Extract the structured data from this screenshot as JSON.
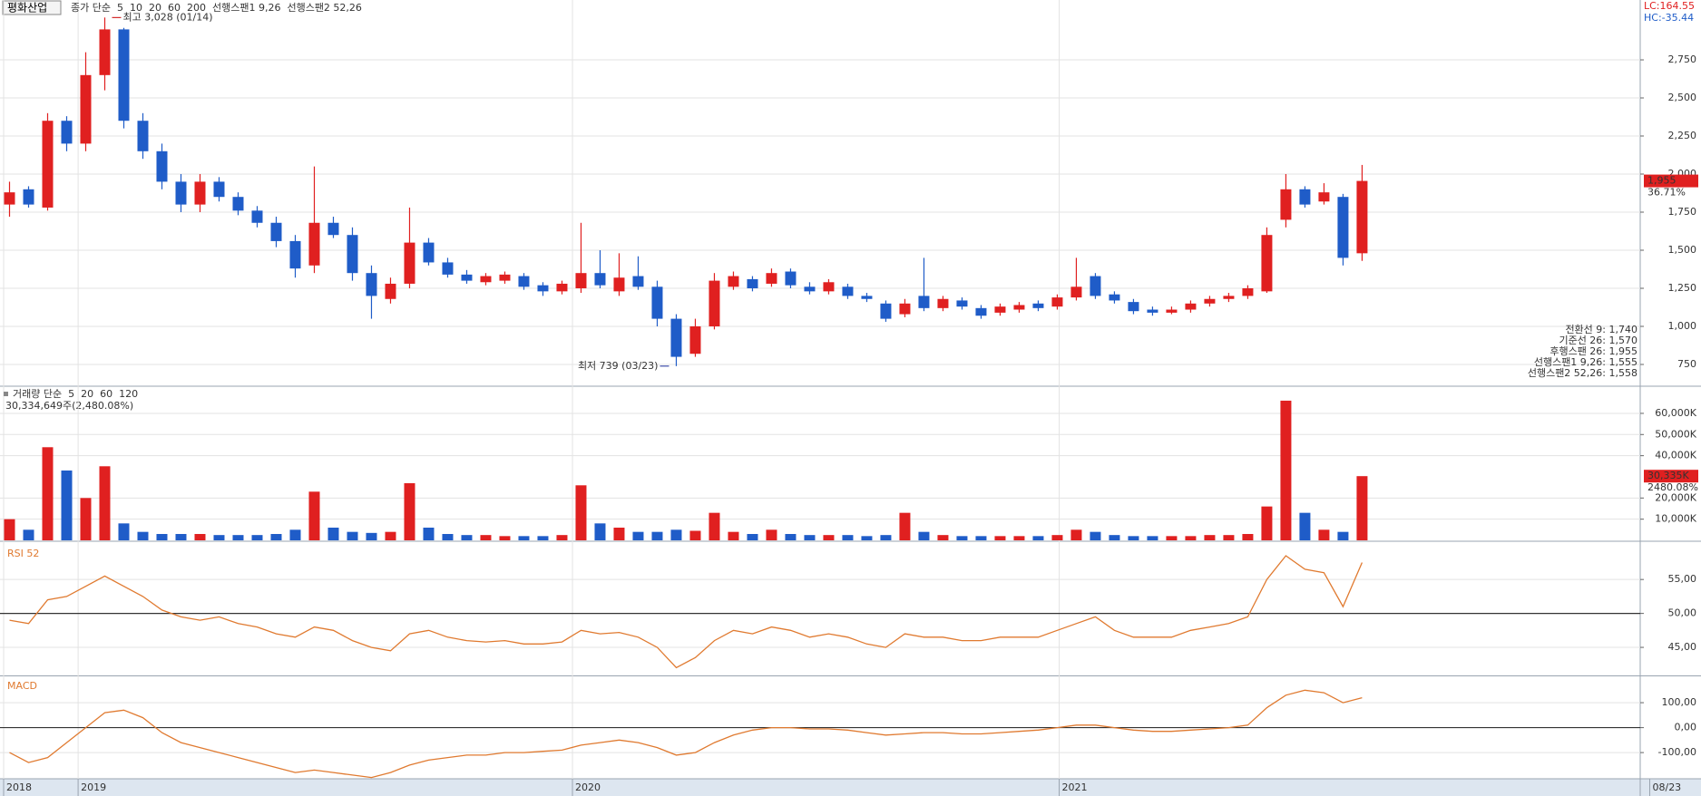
{
  "header": {
    "stock": "평화산업",
    "legend": [
      {
        "text": "종가 단순",
        "color": "#9933cc"
      },
      {
        "text": "5",
        "color": "#9933cc"
      },
      {
        "text": "10",
        "color": "#1a2a80"
      },
      {
        "text": "20",
        "color": "#e0a000"
      },
      {
        "text": "60",
        "color": "#339966"
      },
      {
        "text": "200",
        "color": "#555555"
      },
      {
        "text": "선행스팬1 9,26",
        "color": "#f08040"
      },
      {
        "text": "선행스팬2 52,26",
        "color": "#4a70d0"
      }
    ],
    "lc": "LC:164.55",
    "hc": "HC:-35.44",
    "info": [
      {
        "text": "전환선 9: 1,740",
        "color": "#2e8b57"
      },
      {
        "text": "기준선 26: 1,570",
        "color": "#666666"
      },
      {
        "text": "후행스팬 26: 1,955",
        "color": "#9933cc"
      },
      {
        "text": "선행스팬1 9,26: 1,555",
        "color": "#f08040"
      },
      {
        "text": "선행스팬2 52,26: 1,558",
        "color": "#4a70d0"
      }
    ]
  },
  "chart_data": [
    {
      "type": "candlestick",
      "up_color": "#e02020",
      "down_color": "#1f5cc8",
      "xlim": [
        -0.5,
        85.6
      ],
      "xticks": [
        {
          "value": -0.31,
          "label": "2018"
        },
        {
          "value": 3.6,
          "label": "2019"
        },
        {
          "value": 29.55,
          "label": "2020"
        },
        {
          "value": 55.1,
          "label": "2021"
        },
        {
          "value": 86.1,
          "label": "08/23"
        }
      ],
      "ylim": [
        613,
        3143
      ],
      "yticks": [
        {
          "value": 750,
          "label": "750"
        },
        {
          "value": 1000,
          "label": "1,000"
        },
        {
          "value": 1250,
          "label": "1,250"
        },
        {
          "value": 1500,
          "label": "1,500"
        },
        {
          "value": 1750,
          "label": "1,750"
        },
        {
          "value": 2000,
          "label": "2,000"
        },
        {
          "value": 2250,
          "label": "2,250"
        },
        {
          "value": 2500,
          "label": "2,500"
        },
        {
          "value": 2750,
          "label": "2,750"
        }
      ],
      "open": [
        1800,
        1900,
        1780,
        2350,
        2200,
        2650,
        2950,
        2350,
        2150,
        1950,
        1800,
        1950,
        1850,
        1760,
        1680,
        1560,
        1400,
        1680,
        1600,
        1350,
        1180,
        1280,
        1550,
        1420,
        1340,
        1290,
        1300,
        1330,
        1270,
        1230,
        1250,
        1350,
        1230,
        1330,
        1260,
        1050,
        820,
        1000,
        1260,
        1310,
        1280,
        1360,
        1260,
        1230,
        1260,
        1200,
        1150,
        1080,
        1200,
        1120,
        1170,
        1120,
        1090,
        1110,
        1150,
        1130,
        1190,
        1330,
        1210,
        1160,
        1110,
        1090,
        1110,
        1150,
        1180,
        1200,
        1230,
        1700,
        1900,
        1820,
        1850,
        1480
      ],
      "close": [
        1880,
        1800,
        2350,
        2200,
        2650,
        2950,
        2350,
        2150,
        1950,
        1800,
        1950,
        1850,
        1760,
        1680,
        1560,
        1380,
        1680,
        1600,
        1350,
        1200,
        1280,
        1550,
        1420,
        1340,
        1300,
        1330,
        1340,
        1260,
        1230,
        1280,
        1350,
        1270,
        1320,
        1260,
        1050,
        800,
        1000,
        1300,
        1330,
        1250,
        1350,
        1270,
        1230,
        1290,
        1200,
        1180,
        1050,
        1150,
        1120,
        1180,
        1130,
        1070,
        1130,
        1140,
        1120,
        1190,
        1260,
        1200,
        1170,
        1100,
        1090,
        1110,
        1150,
        1180,
        1200,
        1250,
        1600,
        1900,
        1800,
        1880,
        1450,
        1955
      ],
      "high": [
        1950,
        1920,
        2400,
        2380,
        2800,
        3028,
        2960,
        2400,
        2200,
        2000,
        2000,
        1980,
        1880,
        1790,
        1720,
        1600,
        2050,
        1720,
        1650,
        1400,
        1320,
        1780,
        1580,
        1450,
        1370,
        1350,
        1360,
        1350,
        1290,
        1300,
        1680,
        1500,
        1480,
        1460,
        1300,
        1080,
        1050,
        1350,
        1360,
        1330,
        1380,
        1380,
        1290,
        1310,
        1280,
        1220,
        1170,
        1180,
        1450,
        1200,
        1190,
        1140,
        1150,
        1160,
        1170,
        1210,
        1450,
        1350,
        1230,
        1180,
        1130,
        1130,
        1170,
        1200,
        1220,
        1270,
        1650,
        2000,
        1920,
        1940,
        1870,
        2060
      ],
      "low": [
        1720,
        1780,
        1760,
        2150,
        2150,
        2550,
        2300,
        2100,
        1900,
        1750,
        1750,
        1820,
        1730,
        1650,
        1520,
        1320,
        1350,
        1580,
        1300,
        1050,
        1150,
        1250,
        1400,
        1320,
        1280,
        1270,
        1280,
        1240,
        1200,
        1210,
        1220,
        1250,
        1200,
        1240,
        1000,
        739,
        800,
        980,
        1240,
        1230,
        1260,
        1250,
        1210,
        1210,
        1180,
        1160,
        1030,
        1060,
        1100,
        1100,
        1110,
        1050,
        1070,
        1090,
        1100,
        1110,
        1170,
        1180,
        1150,
        1080,
        1070,
        1080,
        1090,
        1130,
        1160,
        1180,
        1220,
        1650,
        1780,
        1800,
        1400,
        1430
      ],
      "annotations": [
        "최고 3,028 (01/14)",
        "최저 739 (03/23)"
      ],
      "last_label": "1,955",
      "change_label": "36.71%"
    },
    {
      "type": "volume",
      "legend": [
        {
          "text": "거래량 단순",
          "color": "#9933cc"
        },
        {
          "text": "5",
          "color": "#9933cc"
        },
        {
          "text": "20",
          "color": "#e0a000"
        },
        {
          "text": "60",
          "color": "#339966"
        },
        {
          "text": "120",
          "color": "#555555"
        }
      ],
      "subtitle": "30,334,649주(2,480.08%)",
      "ylim": [
        0,
        72400
      ],
      "yticks": [
        {
          "value": 10000,
          "label": "10,000K"
        },
        {
          "value": 20000,
          "label": "20,000K"
        },
        {
          "value": 40000,
          "label": "40,000K"
        },
        {
          "value": 50000,
          "label": "50,000K"
        },
        {
          "value": 60000,
          "label": "60,000K"
        }
      ],
      "values": [
        10000,
        5000,
        44000,
        33000,
        20000,
        35000,
        8000,
        4000,
        3000,
        3000,
        3000,
        2500,
        2500,
        2500,
        3000,
        5000,
        23000,
        6000,
        4000,
        3500,
        4000,
        27000,
        6000,
        3000,
        2500,
        2500,
        2000,
        2000,
        2000,
        2500,
        26000,
        8000,
        6000,
        4000,
        4000,
        5000,
        4500,
        13000,
        4000,
        3000,
        5000,
        3000,
        2500,
        2500,
        2500,
        2000,
        2500,
        13000,
        4000,
        2500,
        2000,
        2000,
        2000,
        2000,
        2000,
        2500,
        5000,
        4000,
        2500,
        2000,
        2000,
        2000,
        2000,
        2500,
        2500,
        3000,
        16000,
        66000,
        13000,
        5000,
        4000,
        30335
      ],
      "last_label": "30,335K",
      "change_label": "2480.08%"
    },
    {
      "type": "line",
      "title": "RSI 52",
      "color": "#e07a30",
      "ylim": [
        41,
        60.5
      ],
      "yticks": [
        {
          "value": 45,
          "label": "45,00"
        },
        {
          "value": 50,
          "label": "50,00"
        },
        {
          "value": 55,
          "label": "55,00"
        }
      ],
      "baseline": 50,
      "values": [
        49,
        48.5,
        52,
        52.5,
        54,
        55.5,
        54,
        52.5,
        50.5,
        49.5,
        49,
        49.5,
        48.5,
        48,
        47,
        46.5,
        48,
        47.5,
        46,
        45,
        44.5,
        47,
        47.5,
        46.5,
        46,
        45.8,
        46,
        45.5,
        45.5,
        45.8,
        47.5,
        47,
        47.2,
        46.5,
        45,
        42,
        43.5,
        46,
        47.5,
        47,
        48,
        47.5,
        46.5,
        47,
        46.5,
        45.5,
        45,
        47,
        46.5,
        46.5,
        46,
        46,
        46.5,
        46.5,
        46.5,
        47.5,
        48.5,
        49.5,
        47.5,
        46.5,
        46.5,
        46.5,
        47.5,
        48,
        48.5,
        49.5,
        55,
        58.5,
        56.5,
        56,
        51,
        57.5
      ]
    },
    {
      "type": "line",
      "title": "MACD",
      "color": "#e07a30",
      "ylim": [
        -205,
        202
      ],
      "yticks": [
        {
          "value": -100,
          "label": "-100,00"
        },
        {
          "value": 0,
          "label": "0,00"
        },
        {
          "value": 100,
          "label": "100,00"
        }
      ],
      "baseline": 0,
      "values": [
        -100,
        -140,
        -120,
        -60,
        0,
        60,
        70,
        40,
        -20,
        -60,
        -80,
        -100,
        -120,
        -140,
        -160,
        -180,
        -170,
        -180,
        -190,
        -200,
        -180,
        -150,
        -130,
        -120,
        -110,
        -110,
        -100,
        -100,
        -95,
        -90,
        -70,
        -60,
        -50,
        -60,
        -80,
        -110,
        -100,
        -60,
        -30,
        -10,
        0,
        0,
        -5,
        -5,
        -10,
        -20,
        -30,
        -25,
        -20,
        -20,
        -25,
        -25,
        -20,
        -15,
        -10,
        0,
        10,
        10,
        0,
        -10,
        -15,
        -15,
        -10,
        -5,
        0,
        10,
        80,
        130,
        150,
        140,
        100,
        120
      ]
    }
  ]
}
